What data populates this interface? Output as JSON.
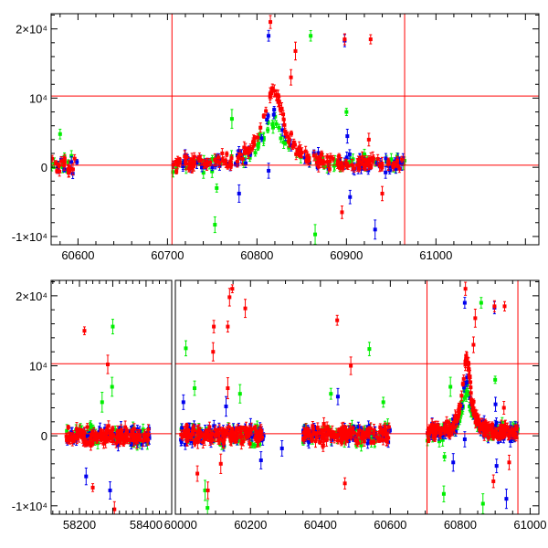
{
  "chart_data": {
    "type": "scatter",
    "title": "",
    "xlabel": "",
    "ylabel": "",
    "colors": {
      "green": "#00ee00",
      "blue": "#0000ee",
      "red": "#ff0000",
      "frame": "#000000",
      "refline": "#ff0000"
    },
    "reference_lines": {
      "horizontal_y": [
        10300,
        300
      ],
      "vertical_x": [
        60705,
        60965
      ]
    },
    "panels": [
      {
        "name": "top-panel",
        "xlim": [
          60570,
          61115
        ],
        "ylim": [
          -11200,
          22200
        ],
        "xticks": [
          {
            "v": 60600,
            "label": "60600"
          },
          {
            "v": 60700,
            "label": "60700"
          },
          {
            "v": 60800,
            "label": "60800"
          },
          {
            "v": 60900,
            "label": "60900"
          },
          {
            "v": 61000,
            "label": "61000"
          }
        ],
        "yticks": [
          {
            "v": 20000,
            "label": "2×10⁴"
          },
          {
            "v": 10000,
            "label": "10⁴"
          },
          {
            "v": 0,
            "label": "0"
          },
          {
            "v": -10000,
            "label": "-1×10⁴"
          }
        ]
      },
      {
        "name": "bottom-panel",
        "segments": [
          {
            "xlim": [
              58115,
              58477
            ]
          },
          {
            "xlim": [
              59985,
              61025
            ]
          }
        ],
        "ylim": [
          -11200,
          22200
        ],
        "xticks": [
          {
            "v": 58200,
            "label": "58200"
          },
          {
            "v": 58400,
            "label": "58400"
          },
          {
            "v": 60000,
            "label": "60000"
          },
          {
            "v": 60200,
            "label": "60200"
          },
          {
            "v": 60400,
            "label": "60400"
          },
          {
            "v": 60600,
            "label": "60600"
          },
          {
            "v": 60800,
            "label": "60800"
          },
          {
            "v": 61000,
            "label": "61000"
          }
        ],
        "yticks": [
          {
            "v": 20000,
            "label": "2×10⁴"
          },
          {
            "v": 10000,
            "label": "10⁴"
          },
          {
            "v": 0,
            "label": "0"
          },
          {
            "v": -10000,
            "label": "-1×10⁴"
          }
        ]
      }
    ],
    "series": [
      {
        "name": "green",
        "color": "#00ee00",
        "peak_amplitude": 6500
      },
      {
        "name": "blue",
        "color": "#0000ee",
        "peak_amplitude": 7500
      },
      {
        "name": "red",
        "color": "#ff0000",
        "peak_amplitude": 10800
      }
    ],
    "event": {
      "t0": 60818,
      "tE": 14,
      "baseline": 400
    },
    "seasons": [
      {
        "x": [
          58160,
          58410
        ],
        "mean": 0,
        "scatter": 900,
        "count": 70
      },
      {
        "x": [
          60000,
          60240
        ],
        "mean": 100,
        "scatter": 1000,
        "count": 70
      },
      {
        "x": [
          60350,
          60600
        ],
        "mean": 200,
        "scatter": 1000,
        "count": 70
      },
      {
        "x": [
          60705,
          60965
        ],
        "mean": 400,
        "scatter": 800,
        "count": 90
      }
    ],
    "outliers": {
      "red": [
        [
          60815,
          21000
        ],
        [
          60843,
          16800
        ],
        [
          60898,
          18500
        ],
        [
          60927,
          18500
        ],
        [
          60895,
          -6500
        ],
        [
          60838,
          13000
        ],
        [
          60925,
          4000
        ],
        [
          60940,
          -3800
        ],
        [
          58215,
          15000
        ],
        [
          58285,
          10200
        ],
        [
          58240,
          -7400
        ],
        [
          60095,
          15600
        ],
        [
          60135,
          15600
        ],
        [
          60140,
          19800
        ],
        [
          60148,
          21000
        ],
        [
          60185,
          18200
        ],
        [
          60093,
          12000
        ],
        [
          60448,
          16500
        ],
        [
          60487,
          10000
        ],
        [
          60078,
          -7800
        ],
        [
          60048,
          -5400
        ],
        [
          60470,
          -6800
        ],
        [
          60135,
          6800
        ],
        [
          60115,
          -4000
        ],
        [
          58305,
          -10500
        ]
      ],
      "green": [
        [
          60753,
          -8300
        ],
        [
          60860,
          19000
        ],
        [
          60865,
          -9700
        ],
        [
          60772,
          7000
        ],
        [
          60900,
          8000
        ],
        [
          60755,
          -3000
        ],
        [
          58300,
          15600
        ],
        [
          58298,
          7000
        ],
        [
          60015,
          12500
        ],
        [
          60540,
          12400
        ],
        [
          60040,
          6800
        ],
        [
          60430,
          6000
        ],
        [
          60077,
          -10300
        ],
        [
          60070,
          -7800
        ],
        [
          58268,
          4800
        ],
        [
          60170,
          6000
        ],
        [
          60580,
          4800
        ]
      ],
      "blue": [
        [
          60813,
          19000
        ],
        [
          60898,
          18300
        ],
        [
          60780,
          -3800
        ],
        [
          60932,
          -9000
        ],
        [
          60813,
          -500
        ],
        [
          60901,
          4500
        ],
        [
          58292,
          -7800
        ],
        [
          58220,
          -5800
        ],
        [
          60008,
          4800
        ],
        [
          60230,
          -3500
        ],
        [
          60290,
          -1800
        ],
        [
          60130,
          4200
        ],
        [
          60450,
          5600
        ],
        [
          60904,
          -4300
        ]
      ]
    }
  }
}
